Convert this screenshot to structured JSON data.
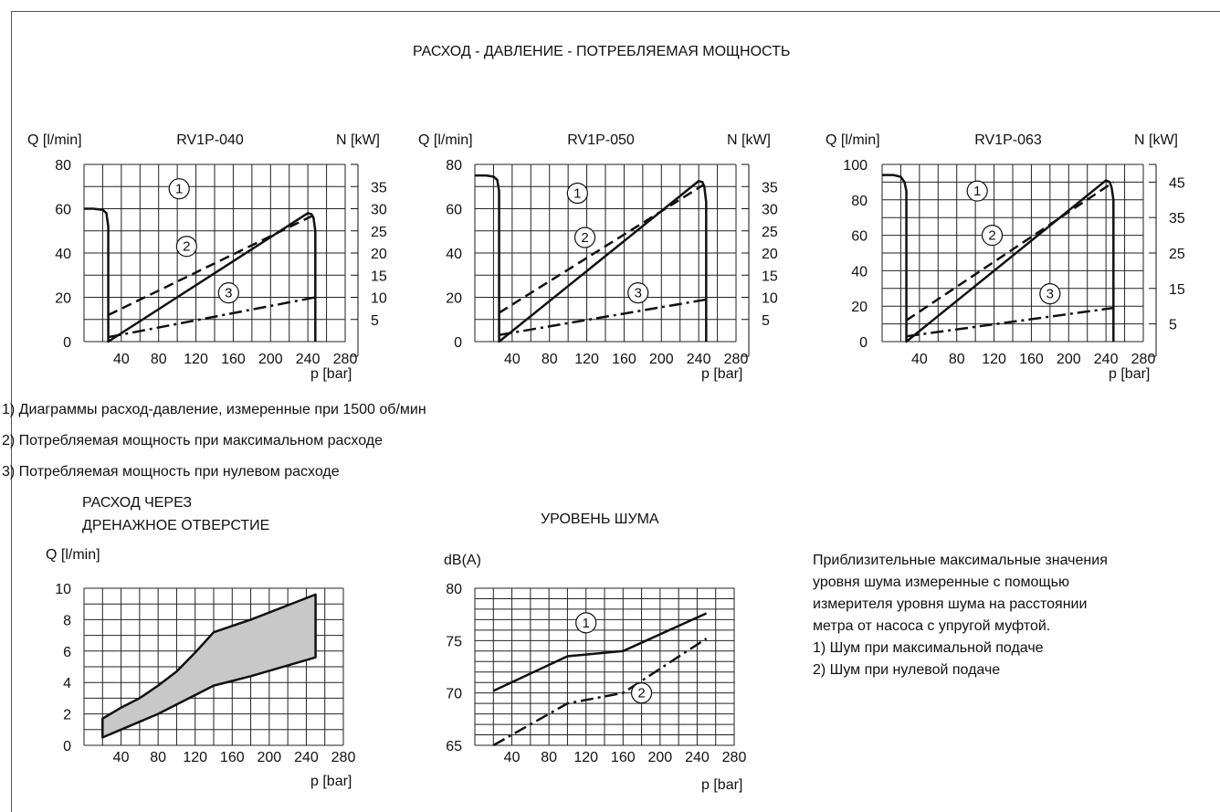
{
  "page_title": "РАСХОД - ДАВЛЕНИЕ - ПОТРЕБЛЯЕМАЯ МОЩНОСТЬ",
  "footnotes": [
    "1) Диаграммы расход-давление, измеренные при 1500 об/мин",
    "2) Потребляемая мощность при максимальном расходе",
    "3) Потребляемая мощность при нулевом расходе"
  ],
  "drain_title": [
    "РАСХОД ЧЕРЕЗ",
    "ДРЕНАЖНОЕ ОТВЕРСТИЕ"
  ],
  "noise_title": "УРОВЕНЬ ШУМА",
  "noise_note": [
    "Приблизительные максимальные значения",
    "уровня шума измеренные с помощью",
    "измерителя уровня шума на расстоянии",
    "метра от насоса с упругой муфтой.",
    "1) Шум при максимальной подаче",
    "2) Шум при нулевой подаче"
  ],
  "chart_data": [
    {
      "type": "line",
      "title": "RV1P-040",
      "ylabel": "Q  [l/min]",
      "y2label": "N [kW]",
      "xlabel": "p [bar]",
      "xlim": [
        0,
        280
      ],
      "ylim": [
        0,
        80
      ],
      "x_ticks": [
        40,
        80,
        120,
        160,
        200,
        240,
        280
      ],
      "y_ticks": [
        0,
        20,
        40,
        60,
        80
      ],
      "y2_ticks": [
        5,
        10,
        15,
        20,
        25,
        30,
        35
      ],
      "y2_max": 40,
      "grid": true,
      "series": [
        {
          "name": "1",
          "style": "solid",
          "label_at": [
            102,
            69
          ],
          "x": [
            0,
            10,
            20,
            24,
            26,
            26,
            26,
            240,
            244,
            246,
            248,
            248,
            248
          ],
          "y": [
            60,
            60,
            59.5,
            58,
            52,
            40,
            0,
            58,
            57.5,
            56,
            50,
            38,
            0
          ]
        },
        {
          "name": "2",
          "style": "dashed",
          "label_at": [
            110,
            43
          ],
          "x": [
            26,
            246
          ],
          "y": [
            12,
            57
          ]
        },
        {
          "name": "3",
          "style": "dashdot",
          "label_at": [
            155,
            22
          ],
          "x": [
            26,
            248
          ],
          "y": [
            2,
            20
          ]
        }
      ]
    },
    {
      "type": "line",
      "title": "RV1P-050",
      "ylabel": "Q  [l/min]",
      "y2label": "N [kW]",
      "xlabel": "p [bar]",
      "xlim": [
        0,
        280
      ],
      "ylim": [
        0,
        80
      ],
      "x_ticks": [
        40,
        80,
        120,
        160,
        200,
        240,
        280
      ],
      "y_ticks": [
        0,
        20,
        40,
        60,
        80
      ],
      "y2_ticks": [
        5,
        10,
        15,
        20,
        25,
        30,
        35
      ],
      "y2_max": 40,
      "grid": true,
      "series": [
        {
          "name": "1",
          "style": "solid",
          "label_at": [
            110,
            67
          ],
          "x": [
            0,
            12,
            20,
            24,
            26,
            26,
            26,
            240,
            244,
            246,
            248,
            248,
            248
          ],
          "y": [
            75,
            75,
            74.5,
            73,
            68,
            50,
            0,
            72.5,
            72,
            70,
            63,
            45,
            0
          ]
        },
        {
          "name": "2",
          "style": "dashed",
          "label_at": [
            118,
            47
          ],
          "x": [
            26,
            246
          ],
          "y": [
            13,
            71
          ]
        },
        {
          "name": "3",
          "style": "dashdot",
          "label_at": [
            175,
            22
          ],
          "x": [
            26,
            248
          ],
          "y": [
            3,
            19
          ]
        }
      ]
    },
    {
      "type": "line",
      "title": "RV1P-063",
      "ylabel": "Q  [l/min]",
      "y2label": "N [kW]",
      "xlabel": "p [bar]",
      "xlim": [
        0,
        280
      ],
      "ylim": [
        0,
        100
      ],
      "x_ticks": [
        40,
        80,
        120,
        160,
        200,
        240,
        280
      ],
      "y_ticks": [
        0,
        20,
        40,
        60,
        80,
        100
      ],
      "y2_ticks": [
        5,
        15,
        25,
        35,
        45
      ],
      "y2_max": 50,
      "grid": true,
      "series": [
        {
          "name": "1",
          "style": "solid",
          "label_at": [
            102,
            85
          ],
          "x": [
            0,
            12,
            20,
            24,
            26,
            26,
            26,
            240,
            244,
            246,
            248,
            248,
            248
          ],
          "y": [
            94,
            94,
            93,
            90,
            85,
            60,
            0,
            91,
            90,
            87,
            80,
            55,
            0
          ]
        },
        {
          "name": "2",
          "style": "dashed",
          "label_at": [
            118,
            60
          ],
          "x": [
            26,
            248
          ],
          "y": [
            12,
            90
          ]
        },
        {
          "name": "3",
          "style": "dashdot",
          "label_at": [
            180,
            27
          ],
          "x": [
            26,
            248
          ],
          "y": [
            3,
            19
          ]
        }
      ]
    },
    {
      "type": "area",
      "title": "",
      "ylabel": "Q [l/min]",
      "xlabel": "p [bar]",
      "xlim": [
        0,
        280
      ],
      "ylim": [
        0,
        10
      ],
      "x_ticks": [
        40,
        80,
        120,
        160,
        200,
        240,
        280
      ],
      "y_ticks": [
        0,
        2,
        4,
        6,
        8,
        10
      ],
      "grid": true,
      "upper": {
        "x": [
          20,
          40,
          60,
          80,
          100,
          120,
          140,
          180,
          250
        ],
        "y": [
          1.7,
          2.4,
          3.0,
          3.8,
          4.7,
          5.9,
          7.2,
          8.0,
          9.6
        ]
      },
      "lower": {
        "x": [
          20,
          40,
          60,
          80,
          100,
          120,
          140,
          180,
          250
        ],
        "y": [
          0.5,
          1.0,
          1.5,
          2.0,
          2.6,
          3.2,
          3.8,
          4.4,
          5.6
        ]
      }
    },
    {
      "type": "line",
      "title": "",
      "ylabel": "dB(A)",
      "xlabel": "p [bar]",
      "xlim": [
        0,
        280
      ],
      "ylim": [
        65,
        80
      ],
      "x_ticks": [
        40,
        80,
        120,
        160,
        200,
        240,
        280
      ],
      "y_ticks": [
        65,
        70,
        75,
        80
      ],
      "grid": true,
      "series": [
        {
          "name": "1",
          "style": "solid",
          "label_at": [
            120,
            76.7
          ],
          "x": [
            20,
            100,
            160,
            250
          ],
          "y": [
            70.2,
            73.5,
            74.0,
            77.6
          ]
        },
        {
          "name": "2",
          "style": "dashdot",
          "label_at": [
            180,
            70
          ],
          "x": [
            20,
            100,
            160,
            250
          ],
          "y": [
            65.0,
            69.0,
            70.0,
            75.2
          ]
        }
      ]
    }
  ]
}
